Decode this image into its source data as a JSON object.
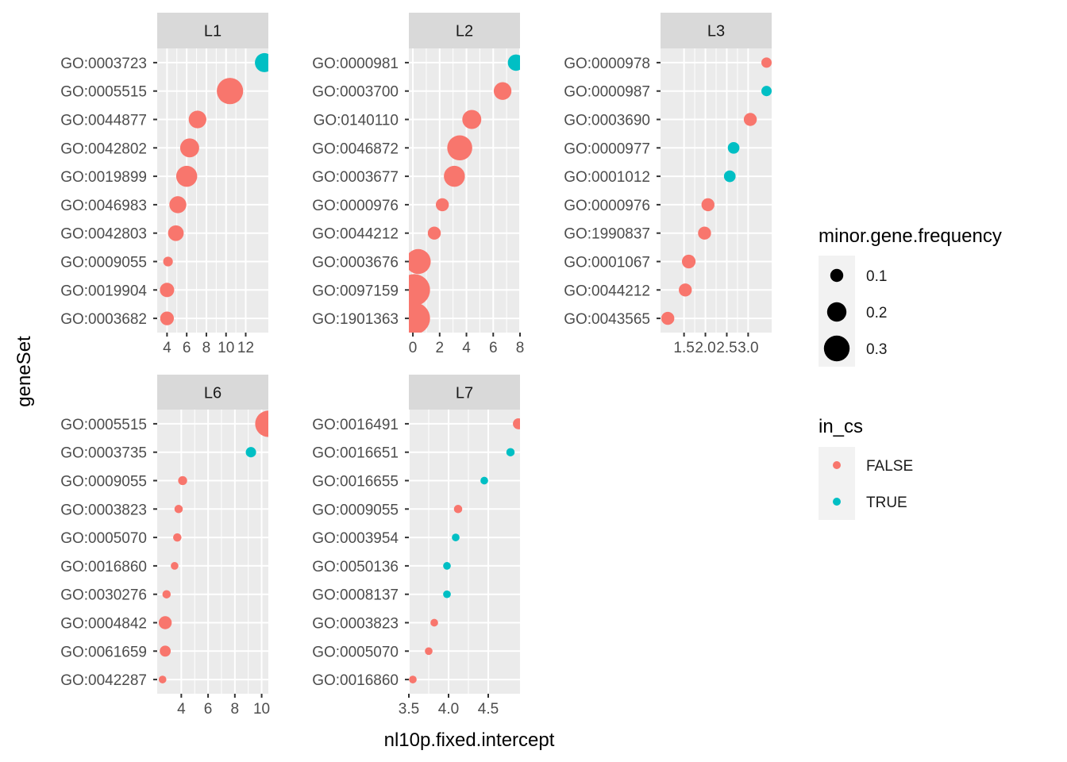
{
  "chart_data": {
    "type": "scatter",
    "xlabel": "nl10p.fixed.intercept",
    "ylabel": "geneSet",
    "facets": [
      {
        "strip": "L1",
        "xlim": [
          3.0,
          14.3
        ],
        "xticks": [
          4,
          6,
          8,
          10,
          12
        ],
        "xtick_labels": [
          "4",
          "6",
          "8",
          "10",
          "12"
        ],
        "points": [
          {
            "y": "GO:0003723",
            "x": 13.9,
            "size": 0.19,
            "in_cs": "TRUE"
          },
          {
            "y": "GO:0005515",
            "x": 10.4,
            "size": 0.3,
            "in_cs": "FALSE"
          },
          {
            "y": "GO:0044877",
            "x": 7.1,
            "size": 0.17,
            "in_cs": "FALSE"
          },
          {
            "y": "GO:0042802",
            "x": 6.3,
            "size": 0.19,
            "in_cs": "FALSE"
          },
          {
            "y": "GO:0019899",
            "x": 6.0,
            "size": 0.22,
            "in_cs": "FALSE"
          },
          {
            "y": "GO:0046983",
            "x": 5.1,
            "size": 0.16,
            "in_cs": "FALSE"
          },
          {
            "y": "GO:0042803",
            "x": 4.9,
            "size": 0.14,
            "in_cs": "FALSE"
          },
          {
            "y": "GO:0009055",
            "x": 4.1,
            "size": 0.05,
            "in_cs": "FALSE"
          },
          {
            "y": "GO:0019904",
            "x": 4.0,
            "size": 0.12,
            "in_cs": "FALSE"
          },
          {
            "y": "GO:0003682",
            "x": 4.0,
            "size": 0.11,
            "in_cs": "FALSE"
          }
        ]
      },
      {
        "strip": "L2",
        "xlim": [
          -0.3,
          8.0
        ],
        "xticks": [
          0,
          2,
          4,
          6,
          8
        ],
        "xtick_labels": [
          "0",
          "2",
          "4",
          "6",
          "8"
        ],
        "points": [
          {
            "y": "GO:0000981",
            "x": 7.7,
            "size": 0.15,
            "in_cs": "TRUE"
          },
          {
            "y": "GO:0003700",
            "x": 6.7,
            "size": 0.17,
            "in_cs": "FALSE"
          },
          {
            "y": "GO:0140110",
            "x": 4.4,
            "size": 0.19,
            "in_cs": "FALSE"
          },
          {
            "y": "GO:0046872",
            "x": 3.5,
            "size": 0.28,
            "in_cs": "FALSE"
          },
          {
            "y": "GO:0003677",
            "x": 3.1,
            "size": 0.22,
            "in_cs": "FALSE"
          },
          {
            "y": "GO:0000976",
            "x": 2.2,
            "size": 0.1,
            "in_cs": "FALSE"
          },
          {
            "y": "GO:0044212",
            "x": 1.6,
            "size": 0.1,
            "in_cs": "FALSE"
          },
          {
            "y": "GO:0003676",
            "x": 0.4,
            "size": 0.28,
            "in_cs": "FALSE"
          },
          {
            "y": "GO:0097159",
            "x": 0.1,
            "size": 0.38,
            "in_cs": "FALSE"
          },
          {
            "y": "GO:1901363",
            "x": 0.1,
            "size": 0.38,
            "in_cs": "FALSE"
          }
        ]
      },
      {
        "strip": "L3",
        "xlim": [
          0.95,
          3.55
        ],
        "xticks": [
          1.5,
          2.0,
          2.5,
          3.0
        ],
        "xtick_labels": [
          "1.5",
          "2.0",
          "2.5",
          "3.0"
        ],
        "points": [
          {
            "y": "GO:0000978",
            "x": 3.43,
            "size": 0.06,
            "in_cs": "FALSE"
          },
          {
            "y": "GO:0000987",
            "x": 3.43,
            "size": 0.06,
            "in_cs": "TRUE"
          },
          {
            "y": "GO:0003690",
            "x": 3.05,
            "size": 0.1,
            "in_cs": "FALSE"
          },
          {
            "y": "GO:0000977",
            "x": 2.66,
            "size": 0.08,
            "in_cs": "TRUE"
          },
          {
            "y": "GO:0001012",
            "x": 2.57,
            "size": 0.08,
            "in_cs": "TRUE"
          },
          {
            "y": "GO:0000976",
            "x": 2.06,
            "size": 0.1,
            "in_cs": "FALSE"
          },
          {
            "y": "GO:1990837",
            "x": 1.98,
            "size": 0.1,
            "in_cs": "FALSE"
          },
          {
            "y": "GO:0001067",
            "x": 1.61,
            "size": 0.11,
            "in_cs": "FALSE"
          },
          {
            "y": "GO:0044212",
            "x": 1.53,
            "size": 0.1,
            "in_cs": "FALSE"
          },
          {
            "y": "GO:0043565",
            "x": 1.12,
            "size": 0.1,
            "in_cs": "FALSE"
          }
        ]
      },
      {
        "strip": "L6",
        "xlim": [
          2.2,
          10.5
        ],
        "xticks": [
          4,
          6,
          8,
          10
        ],
        "xtick_labels": [
          "4",
          "6",
          "8",
          "10"
        ],
        "points": [
          {
            "y": "GO:0005515",
            "x": 10.5,
            "size": 0.3,
            "in_cs": "FALSE"
          },
          {
            "y": "GO:0003735",
            "x": 9.2,
            "size": 0.06,
            "in_cs": "TRUE"
          },
          {
            "y": "GO:0009055",
            "x": 4.1,
            "size": 0.04,
            "in_cs": "FALSE"
          },
          {
            "y": "GO:0003823",
            "x": 3.8,
            "size": 0.03,
            "in_cs": "FALSE"
          },
          {
            "y": "GO:0005070",
            "x": 3.7,
            "size": 0.03,
            "in_cs": "FALSE"
          },
          {
            "y": "GO:0016860",
            "x": 3.5,
            "size": 0.02,
            "in_cs": "FALSE"
          },
          {
            "y": "GO:0030276",
            "x": 2.9,
            "size": 0.03,
            "in_cs": "FALSE"
          },
          {
            "y": "GO:0004842",
            "x": 2.8,
            "size": 0.1,
            "in_cs": "FALSE"
          },
          {
            "y": "GO:0061659",
            "x": 2.8,
            "size": 0.07,
            "in_cs": "FALSE"
          },
          {
            "y": "GO:0042287",
            "x": 2.6,
            "size": 0.02,
            "in_cs": "FALSE"
          }
        ]
      },
      {
        "strip": "L7",
        "xlim": [
          3.5,
          4.9
        ],
        "xticks": [
          3.5,
          4.0,
          4.5
        ],
        "xtick_labels": [
          "3.5",
          "4.0",
          "4.5"
        ],
        "points": [
          {
            "y": "GO:0016491",
            "x": 4.88,
            "size": 0.07,
            "in_cs": "FALSE"
          },
          {
            "y": "GO:0016651",
            "x": 4.78,
            "size": 0.03,
            "in_cs": "TRUE"
          },
          {
            "y": "GO:0016655",
            "x": 4.45,
            "size": 0.02,
            "in_cs": "TRUE"
          },
          {
            "y": "GO:0009055",
            "x": 4.12,
            "size": 0.03,
            "in_cs": "FALSE"
          },
          {
            "y": "GO:0003954",
            "x": 4.09,
            "size": 0.02,
            "in_cs": "TRUE"
          },
          {
            "y": "GO:0050136",
            "x": 3.98,
            "size": 0.02,
            "in_cs": "TRUE"
          },
          {
            "y": "GO:0008137",
            "x": 3.98,
            "size": 0.02,
            "in_cs": "TRUE"
          },
          {
            "y": "GO:0003823",
            "x": 3.82,
            "size": 0.02,
            "in_cs": "FALSE"
          },
          {
            "y": "GO:0005070",
            "x": 3.75,
            "size": 0.02,
            "in_cs": "FALSE"
          },
          {
            "y": "GO:0016860",
            "x": 3.55,
            "size": 0.02,
            "in_cs": "FALSE"
          }
        ]
      }
    ],
    "legend": {
      "placement": "right",
      "size": {
        "title": "minor.gene.frequency",
        "entries": [
          {
            "label": "0.1",
            "value": 0.1
          },
          {
            "label": "0.2",
            "value": 0.2
          },
          {
            "label": "0.3",
            "value": 0.3
          }
        ]
      },
      "color": {
        "title": "in_cs",
        "entries": [
          {
            "label": "FALSE",
            "color": "#F8766D"
          },
          {
            "label": "TRUE",
            "color": "#00BFC4"
          }
        ]
      }
    },
    "colors": {
      "FALSE": "#F8766D",
      "TRUE": "#00BFC4",
      "panel_bg": "#EBEBEB",
      "strip_bg": "#D9D9D9",
      "grid": "#FFFFFF"
    }
  }
}
